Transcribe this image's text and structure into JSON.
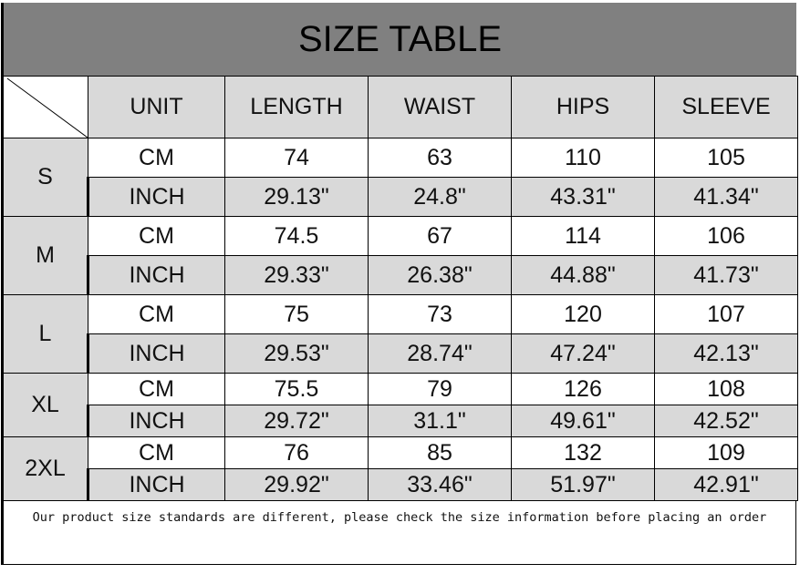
{
  "title": "SIZE TABLE",
  "headers": [
    "UNIT",
    "LENGTH",
    "WAIST",
    "HIPS",
    "SLEEVE"
  ],
  "rows": [
    {
      "size": "S",
      "cm": {
        "unit": "CM",
        "values": [
          "74",
          "63",
          "110",
          "105"
        ]
      },
      "inch": {
        "unit": "INCH",
        "values": [
          "29.13\"",
          "24.8\"",
          "43.31\"",
          "41.34\""
        ]
      }
    },
    {
      "size": "M",
      "cm": {
        "unit": "CM",
        "values": [
          "74.5",
          "67",
          "114",
          "106"
        ]
      },
      "inch": {
        "unit": "INCH",
        "values": [
          "29.33\"",
          "26.38\"",
          "44.88\"",
          "41.73\""
        ]
      }
    },
    {
      "size": "L",
      "cm": {
        "unit": "CM",
        "values": [
          "75",
          "73",
          "120",
          "107"
        ]
      },
      "inch": {
        "unit": "INCH",
        "values": [
          "29.53\"",
          "28.74\"",
          "47.24\"",
          "42.13\""
        ]
      }
    },
    {
      "size": "XL",
      "cm": {
        "unit": "CM",
        "values": [
          "75.5",
          "79",
          "126",
          "108"
        ]
      },
      "inch": {
        "unit": "INCH",
        "values": [
          "29.72\"",
          "31.1\"",
          "49.61\"",
          "42.52\""
        ]
      }
    },
    {
      "size": "2XL",
      "cm": {
        "unit": "CM",
        "values": [
          "76",
          "85",
          "132",
          "109"
        ]
      },
      "inch": {
        "unit": "INCH",
        "values": [
          "29.92\"",
          "33.46\"",
          "51.97\"",
          "42.91\""
        ]
      }
    }
  ],
  "footer_note": "Our product size standards are different, please check the size information before placing an order",
  "colors": {
    "title_bg": "#808080",
    "header_bg": "#d9d9d9",
    "border": "#000000"
  }
}
